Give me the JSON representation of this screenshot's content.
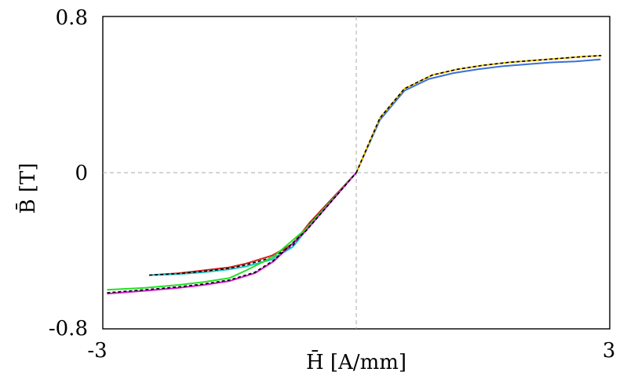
{
  "chart_data": {
    "type": "line",
    "xlabel": "H̄ [A/mm]",
    "ylabel": "B̄ [T]",
    "xlim": [
      -3,
      3
    ],
    "ylim": [
      -0.8,
      0.8
    ],
    "x_tick_labels": [
      "-3",
      "3"
    ],
    "y_tick_labels": [
      "0.8",
      "0",
      "-0.8"
    ],
    "grid": "dashed zero lines at x = 0 and y = 0",
    "legend": "none",
    "series": [
      {
        "color": "#3a6fd8",
        "style": "solid",
        "points": [
          [
            0,
            0
          ],
          [
            0.28,
            0.27
          ],
          [
            0.57,
            0.42
          ],
          [
            0.86,
            0.48
          ],
          [
            1.15,
            0.51
          ],
          [
            1.44,
            0.53
          ],
          [
            1.73,
            0.545
          ],
          [
            2.02,
            0.555
          ],
          [
            2.31,
            0.565
          ],
          [
            2.6,
            0.57
          ],
          [
            2.89,
            0.58
          ]
        ]
      },
      {
        "color": "#f2c200",
        "style": "solid",
        "points": [
          [
            0,
            0
          ],
          [
            0.28,
            0.28
          ],
          [
            0.57,
            0.43
          ],
          [
            0.9,
            0.5
          ],
          [
            1.2,
            0.53
          ],
          [
            1.5,
            0.55
          ],
          [
            1.8,
            0.565
          ],
          [
            2.1,
            0.575
          ],
          [
            2.4,
            0.585
          ],
          [
            2.7,
            0.595
          ],
          [
            2.9,
            0.6
          ]
        ]
      },
      {
        "color": "#000000",
        "style": "dashed",
        "points": [
          [
            0,
            0
          ],
          [
            0.28,
            0.28
          ],
          [
            0.57,
            0.43
          ],
          [
            0.9,
            0.5
          ],
          [
            1.2,
            0.53
          ],
          [
            1.5,
            0.55
          ],
          [
            1.8,
            0.565
          ],
          [
            2.1,
            0.575
          ],
          [
            2.4,
            0.585
          ],
          [
            2.7,
            0.595
          ],
          [
            2.9,
            0.6
          ]
        ]
      },
      {
        "color": "#d42020",
        "style": "solid",
        "points": [
          [
            -2.45,
            -0.525
          ],
          [
            -2.1,
            -0.515
          ],
          [
            -1.8,
            -0.5
          ],
          [
            -1.5,
            -0.485
          ],
          [
            -1.3,
            -0.465
          ],
          [
            -1.0,
            -0.425
          ],
          [
            -0.75,
            -0.365
          ],
          [
            -0.55,
            -0.255
          ],
          [
            0,
            0
          ]
        ]
      },
      {
        "color": "#18c6c6",
        "style": "solid",
        "points": [
          [
            -2.45,
            -0.525
          ],
          [
            -2.1,
            -0.52
          ],
          [
            -1.8,
            -0.51
          ],
          [
            -1.5,
            -0.495
          ],
          [
            -1.3,
            -0.48
          ],
          [
            -1.0,
            -0.445
          ],
          [
            -0.75,
            -0.38
          ],
          [
            -0.55,
            -0.27
          ],
          [
            0,
            0
          ]
        ]
      },
      {
        "color": "#000000",
        "style": "dashed",
        "points": [
          [
            -2.45,
            -0.525
          ],
          [
            -2.1,
            -0.517
          ],
          [
            -1.8,
            -0.505
          ],
          [
            -1.5,
            -0.49
          ],
          [
            -1.3,
            -0.472
          ],
          [
            -1.0,
            -0.435
          ],
          [
            -0.75,
            -0.372
          ],
          [
            -0.55,
            -0.262
          ],
          [
            0,
            0
          ]
        ]
      },
      {
        "color": "#22e022",
        "style": "solid",
        "points": [
          [
            -2.95,
            -0.6
          ],
          [
            -2.5,
            -0.59
          ],
          [
            -2.1,
            -0.575
          ],
          [
            -1.8,
            -0.56
          ],
          [
            -1.5,
            -0.54
          ],
          [
            -1.3,
            -0.5
          ],
          [
            -0.98,
            -0.43
          ],
          [
            -0.6,
            -0.29
          ],
          [
            0,
            0
          ]
        ]
      },
      {
        "color": "#d21ad2",
        "style": "solid",
        "points": [
          [
            -2.95,
            -0.62
          ],
          [
            -2.5,
            -0.605
          ],
          [
            -2.1,
            -0.59
          ],
          [
            -1.8,
            -0.575
          ],
          [
            -1.5,
            -0.555
          ],
          [
            -1.2,
            -0.515
          ],
          [
            -0.98,
            -0.455
          ],
          [
            -0.6,
            -0.3
          ],
          [
            0,
            0
          ]
        ]
      },
      {
        "color": "#000000",
        "style": "dashed",
        "points": [
          [
            -2.95,
            -0.615
          ],
          [
            -2.5,
            -0.6
          ],
          [
            -2.1,
            -0.585
          ],
          [
            -1.8,
            -0.57
          ],
          [
            -1.5,
            -0.55
          ],
          [
            -1.2,
            -0.51
          ],
          [
            -0.98,
            -0.45
          ],
          [
            -0.6,
            -0.3
          ],
          [
            0,
            0
          ]
        ]
      }
    ]
  }
}
